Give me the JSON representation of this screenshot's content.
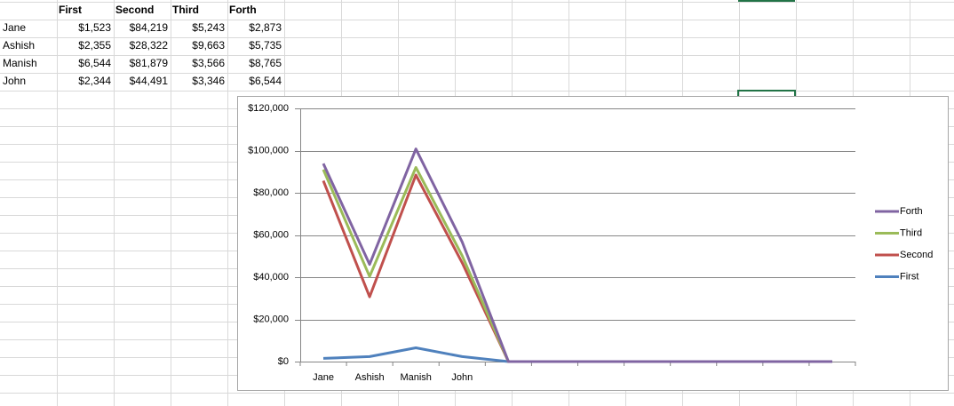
{
  "table": {
    "columns": [
      "First",
      "Second",
      "Third",
      "Forth"
    ],
    "rows": [
      {
        "name": "Jane",
        "cells": [
          "$1,523",
          "$84,219",
          "$5,243",
          "$2,873"
        ]
      },
      {
        "name": "Ashish",
        "cells": [
          "$2,355",
          "$28,322",
          "$9,663",
          "$5,735"
        ]
      },
      {
        "name": "Manish",
        "cells": [
          "$6,544",
          "$81,879",
          "$3,566",
          "$8,765"
        ]
      },
      {
        "name": "John",
        "cells": [
          "$2,344",
          "$44,491",
          "$3,346",
          "$6,544"
        ]
      }
    ]
  },
  "chart_data": {
    "type": "line",
    "stacked": true,
    "legend": "right",
    "grid": true,
    "categories": [
      "Jane",
      "Ashish",
      "Manish",
      "John",
      null,
      null,
      null,
      null,
      null,
      null,
      null,
      null
    ],
    "series": [
      {
        "name": "First",
        "color": "#4f81bd",
        "values": [
          1523,
          2355,
          6544,
          2344,
          0,
          0,
          0,
          0,
          0,
          0,
          0,
          0
        ]
      },
      {
        "name": "Second",
        "color": "#c0504d",
        "values": [
          84219,
          28322,
          81879,
          44491,
          0,
          0,
          0,
          0,
          0,
          0,
          0,
          0
        ]
      },
      {
        "name": "Third",
        "color": "#9bbb59",
        "values": [
          5243,
          9663,
          3566,
          3346,
          0,
          0,
          0,
          0,
          0,
          0,
          0,
          0
        ]
      },
      {
        "name": "Forth",
        "color": "#8064a2",
        "values": [
          2873,
          5735,
          8765,
          6544,
          0,
          0,
          0,
          0,
          0,
          0,
          0,
          0
        ]
      }
    ],
    "ylim": [
      0,
      120000
    ],
    "yticks": [
      {
        "value": 0,
        "label": "$0"
      },
      {
        "value": 20000,
        "label": "$20,000"
      },
      {
        "value": 40000,
        "label": "$40,000"
      },
      {
        "value": 60000,
        "label": "$60,000"
      },
      {
        "value": 80000,
        "label": "$80,000"
      },
      {
        "value": 100000,
        "label": "$100,000"
      },
      {
        "value": 120000,
        "label": "$120,000"
      }
    ]
  }
}
